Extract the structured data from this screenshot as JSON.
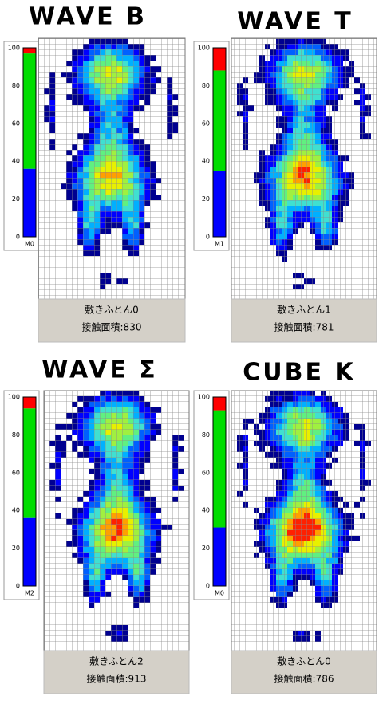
{
  "panels": [
    {
      "title": "WAVE B",
      "legend": {
        "ticks": [
          0,
          20,
          40,
          60,
          80,
          100
        ],
        "label": "M0",
        "segments": [
          {
            "color": "#0000ff",
            "value": 36
          },
          {
            "color": "#00dd00",
            "value": 61
          },
          {
            "color": "#ff0000",
            "value": 3
          }
        ]
      },
      "caption": {
        "name": "敷きふとん0",
        "area": "接触面積:830"
      }
    },
    {
      "title": "WAVE T",
      "legend": {
        "ticks": [
          0,
          20,
          40,
          60,
          80,
          100
        ],
        "label": "M1",
        "segments": [
          {
            "color": "#0000ff",
            "value": 35
          },
          {
            "color": "#00dd00",
            "value": 53
          },
          {
            "color": "#ff0000",
            "value": 12
          }
        ]
      },
      "caption": {
        "name": "敷きふとん1",
        "area": "接触面積:781"
      }
    },
    {
      "title": "WAVE Σ",
      "legend": {
        "ticks": [
          0,
          20,
          40,
          60,
          80,
          100
        ],
        "label": "M2",
        "segments": [
          {
            "color": "#0000ff",
            "value": 36
          },
          {
            "color": "#00dd00",
            "value": 58
          },
          {
            "color": "#ff0000",
            "value": 6
          }
        ]
      },
      "caption": {
        "name": "敷きふとん2",
        "area": "接触面積:913"
      }
    },
    {
      "title": "CUBE K",
      "legend": {
        "ticks": [
          0,
          20,
          40,
          60,
          80,
          100
        ],
        "label": "M0",
        "segments": [
          {
            "color": "#0000ff",
            "value": 31
          },
          {
            "color": "#00dd00",
            "value": 62
          },
          {
            "color": "#ff0000",
            "value": 7
          }
        ]
      },
      "caption": {
        "name": "敷きふとん0",
        "area": "接触面積:786"
      }
    }
  ]
}
